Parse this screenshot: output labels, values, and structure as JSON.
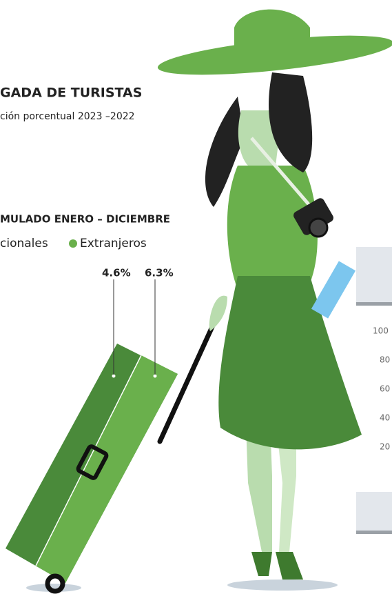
{
  "header": {
    "title": "GADA DE TURISTAS",
    "subtitle": "ción porcentual 2023 –2022"
  },
  "section": {
    "title": "MULADO ENERO – DICIEMBRE",
    "legend": [
      "cionales",
      "Extranjeros"
    ],
    "labels": [
      "4.6%",
      "6.3%"
    ]
  },
  "axis": {
    "ticks": [
      "100",
      "80",
      "60",
      "40",
      "20"
    ]
  }
}
